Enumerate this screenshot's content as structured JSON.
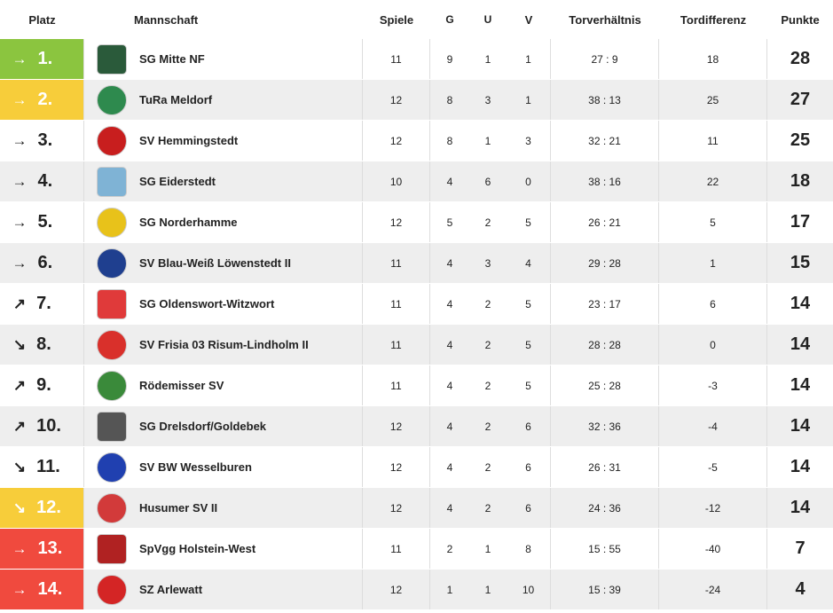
{
  "headers": {
    "platz": "Platz",
    "mannschaft": "Mannschaft",
    "spiele": "Spiele",
    "g": "G",
    "u": "U",
    "v": "V",
    "torverhaeltnis": "Torverhältnis",
    "tordifferenz": "Tordifferenz",
    "punkte": "Punkte"
  },
  "colors": {
    "promotion": "#8bc53f",
    "qualification": "#f7cd3a",
    "relegation": "#f04a3e",
    "row_alt": "#eeeeee",
    "row_normal": "#ffffff"
  },
  "rows": [
    {
      "arrow": "→",
      "rank": "1.",
      "team": "SG Mitte NF",
      "spiele": "11",
      "g": "9",
      "u": "1",
      "v": "1",
      "tv": "27 : 9",
      "td": "18",
      "pkt": "28",
      "logo_icon": "sg-mitte-nf-crest-icon",
      "logo_color": "#2a5a3a",
      "highlight": "promotion"
    },
    {
      "arrow": "→",
      "rank": "2.",
      "team": "TuRa Meldorf",
      "spiele": "12",
      "g": "8",
      "u": "3",
      "v": "1",
      "tv": "38 : 13",
      "td": "25",
      "pkt": "27",
      "logo_icon": "tura-meldorf-crest-icon",
      "logo_color": "#2e8a4e",
      "highlight": "qualification"
    },
    {
      "arrow": "→",
      "rank": "3.",
      "team": "SV Hemmingstedt",
      "spiele": "12",
      "g": "8",
      "u": "1",
      "v": "3",
      "tv": "32 : 21",
      "td": "11",
      "pkt": "25",
      "logo_icon": "sv-hemmingstedt-crest-icon",
      "logo_color": "#c81e1e",
      "highlight": "none"
    },
    {
      "arrow": "→",
      "rank": "4.",
      "team": "SG Eiderstedt",
      "spiele": "10",
      "g": "4",
      "u": "6",
      "v": "0",
      "tv": "38 : 16",
      "td": "22",
      "pkt": "18",
      "logo_icon": "sg-eiderstedt-crest-icon",
      "logo_color": "#7fb3d5",
      "highlight": "none"
    },
    {
      "arrow": "→",
      "rank": "5.",
      "team": "SG Norderhamme",
      "spiele": "12",
      "g": "5",
      "u": "2",
      "v": "5",
      "tv": "26 : 21",
      "td": "5",
      "pkt": "17",
      "logo_icon": "sg-norderhamme-crest-icon",
      "logo_color": "#e8c21a",
      "highlight": "none"
    },
    {
      "arrow": "→",
      "rank": "6.",
      "team": "SV Blau-Weiß Löwenstedt II",
      "spiele": "11",
      "g": "4",
      "u": "3",
      "v": "4",
      "tv": "29 : 28",
      "td": "1",
      "pkt": "15",
      "logo_icon": "sv-loewenstedt-crest-icon",
      "logo_color": "#1f3f8f",
      "highlight": "none"
    },
    {
      "arrow": "↗",
      "rank": "7.",
      "team": "SG Oldenswort-Witzwort",
      "spiele": "11",
      "g": "4",
      "u": "2",
      "v": "5",
      "tv": "23 : 17",
      "td": "6",
      "pkt": "14",
      "logo_icon": "sg-oldenswort-crest-icon",
      "logo_color": "#e03a3a",
      "highlight": "none"
    },
    {
      "arrow": "↘",
      "rank": "8.",
      "team": "SV Frisia 03 Risum-Lindholm II",
      "spiele": "11",
      "g": "4",
      "u": "2",
      "v": "5",
      "tv": "28 : 28",
      "td": "0",
      "pkt": "14",
      "logo_icon": "sv-frisia-crest-icon",
      "logo_color": "#d9302b",
      "highlight": "none"
    },
    {
      "arrow": "↗",
      "rank": "9.",
      "team": "Rödemisser SV",
      "spiele": "11",
      "g": "4",
      "u": "2",
      "v": "5",
      "tv": "25 : 28",
      "td": "-3",
      "pkt": "14",
      "logo_icon": "roedemisser-sv-crest-icon",
      "logo_color": "#3a8a3a",
      "highlight": "none"
    },
    {
      "arrow": "↗",
      "rank": "10.",
      "team": "SG Drelsdorf/Goldebek",
      "spiele": "12",
      "g": "4",
      "u": "2",
      "v": "6",
      "tv": "32 : 36",
      "td": "-4",
      "pkt": "14",
      "logo_icon": "sg-drelsdorf-crest-icon",
      "logo_color": "#555555",
      "highlight": "none"
    },
    {
      "arrow": "↘",
      "rank": "11.",
      "team": "SV BW Wesselburen",
      "spiele": "12",
      "g": "4",
      "u": "2",
      "v": "6",
      "tv": "26 : 31",
      "td": "-5",
      "pkt": "14",
      "logo_icon": "sv-bw-wesselburen-crest-icon",
      "logo_color": "#2040b0",
      "highlight": "none"
    },
    {
      "arrow": "↘",
      "rank": "12.",
      "team": "Husumer SV II",
      "spiele": "12",
      "g": "4",
      "u": "2",
      "v": "6",
      "tv": "24 : 36",
      "td": "-12",
      "pkt": "14",
      "logo_icon": "husumer-sv-crest-icon",
      "logo_color": "#d23a3a",
      "highlight": "qualification"
    },
    {
      "arrow": "→",
      "rank": "13.",
      "team": "SpVgg Holstein-West",
      "spiele": "11",
      "g": "2",
      "u": "1",
      "v": "8",
      "tv": "15 : 55",
      "td": "-40",
      "pkt": "7",
      "logo_icon": "spvgg-holstein-west-crest-icon",
      "logo_color": "#b02222",
      "highlight": "relegation"
    },
    {
      "arrow": "→",
      "rank": "14.",
      "team": "SZ Arlewatt",
      "spiele": "12",
      "g": "1",
      "u": "1",
      "v": "10",
      "tv": "15 : 39",
      "td": "-24",
      "pkt": "4",
      "logo_icon": "sz-arlewatt-crest-icon",
      "logo_color": "#d42525",
      "highlight": "relegation"
    }
  ]
}
